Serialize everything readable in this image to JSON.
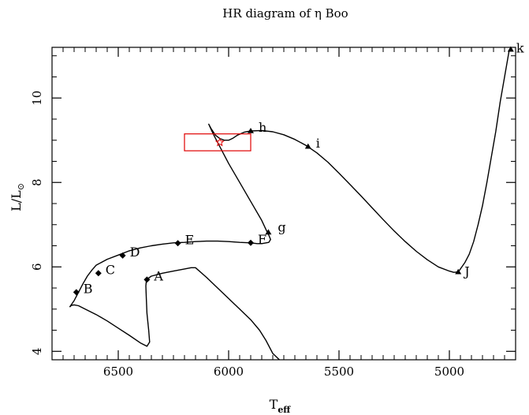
{
  "chart_data": {
    "type": "line",
    "title": "HR diagram of η Boo",
    "xlabel": "T",
    "xlabel_sub": "eff",
    "ylabel": "L/L",
    "ylabel_symbol": "⊙",
    "xlim": [
      6800,
      4700
    ],
    "ylim": [
      3.8,
      11.2
    ],
    "x_reversed": true,
    "xticks": [
      6500,
      6000,
      5500,
      5000
    ],
    "xtick_labels": [
      "6500",
      "6000",
      "5500",
      "5000"
    ],
    "yticks": [
      4,
      6,
      8,
      10
    ],
    "ytick_labels": [
      "4",
      "6",
      "8",
      "10"
    ],
    "grid": false,
    "tracks": [
      {
        "points": [
          [
            6720,
            5.05
          ],
          [
            6712,
            5.09
          ],
          [
            6700,
            5.1
          ],
          [
            6680,
            5.08
          ],
          [
            6650,
            5.0
          ],
          [
            6600,
            4.87
          ],
          [
            6550,
            4.72
          ],
          [
            6500,
            4.55
          ],
          [
            6450,
            4.38
          ],
          [
            6400,
            4.2
          ],
          [
            6370,
            4.12
          ],
          [
            6358,
            4.22
          ],
          [
            6362,
            4.5
          ],
          [
            6370,
            4.9
          ],
          [
            6373,
            5.25
          ],
          [
            6375,
            5.55
          ],
          [
            6372,
            5.7
          ],
          [
            6350,
            5.78
          ],
          [
            6300,
            5.85
          ],
          [
            6250,
            5.9
          ],
          [
            6200,
            5.95
          ],
          [
            6170,
            5.98
          ],
          [
            6150,
            5.98
          ],
          [
            6100,
            5.75
          ],
          [
            6050,
            5.5
          ],
          [
            6000,
            5.25
          ],
          [
            5950,
            5.0
          ],
          [
            5900,
            4.75
          ],
          [
            5860,
            4.5
          ],
          [
            5830,
            4.25
          ],
          [
            5800,
            3.95
          ],
          [
            5770,
            3.7
          ]
        ]
      },
      {
        "points": [
          [
            6720,
            5.05
          ],
          [
            6700,
            5.2
          ],
          [
            6680,
            5.4
          ],
          [
            6660,
            5.6
          ],
          [
            6640,
            5.78
          ],
          [
            6620,
            5.92
          ],
          [
            6600,
            6.04
          ],
          [
            6550,
            6.18
          ],
          [
            6500,
            6.28
          ],
          [
            6450,
            6.38
          ],
          [
            6400,
            6.45
          ],
          [
            6350,
            6.5
          ],
          [
            6300,
            6.54
          ],
          [
            6250,
            6.57
          ],
          [
            6200,
            6.58
          ],
          [
            6150,
            6.6
          ],
          [
            6100,
            6.61
          ],
          [
            6050,
            6.61
          ],
          [
            6000,
            6.6
          ],
          [
            5950,
            6.58
          ],
          [
            5900,
            6.57
          ],
          [
            5870,
            6.55
          ],
          [
            5850,
            6.55
          ],
          [
            5818,
            6.58
          ],
          [
            5810,
            6.65
          ],
          [
            5818,
            6.75
          ],
          [
            5825,
            6.82
          ],
          [
            5850,
            7.1
          ],
          [
            5900,
            7.55
          ],
          [
            5950,
            8.0
          ],
          [
            6000,
            8.45
          ],
          [
            6040,
            8.85
          ],
          [
            6070,
            9.15
          ],
          [
            6090,
            9.38
          ],
          [
            6080,
            9.28
          ],
          [
            6060,
            9.12
          ],
          [
            6040,
            9.04
          ],
          [
            6020,
            9.0
          ],
          [
            6000,
            9.0
          ],
          [
            5980,
            9.05
          ],
          [
            5960,
            9.12
          ],
          [
            5930,
            9.19
          ],
          [
            5900,
            9.22
          ],
          [
            5850,
            9.23
          ],
          [
            5800,
            9.2
          ],
          [
            5750,
            9.13
          ],
          [
            5700,
            9.02
          ],
          [
            5650,
            8.88
          ],
          [
            5600,
            8.7
          ],
          [
            5550,
            8.48
          ],
          [
            5500,
            8.22
          ],
          [
            5450,
            7.95
          ],
          [
            5400,
            7.68
          ],
          [
            5350,
            7.4
          ],
          [
            5300,
            7.12
          ],
          [
            5250,
            6.85
          ],
          [
            5200,
            6.6
          ],
          [
            5150,
            6.37
          ],
          [
            5100,
            6.17
          ],
          [
            5050,
            6.0
          ],
          [
            5000,
            5.9
          ],
          [
            4980,
            5.87
          ],
          [
            4960,
            5.88
          ],
          [
            4950,
            5.95
          ],
          [
            4930,
            6.1
          ],
          [
            4910,
            6.3
          ],
          [
            4890,
            6.6
          ],
          [
            4870,
            7.0
          ],
          [
            4850,
            7.45
          ],
          [
            4830,
            8.0
          ],
          [
            4810,
            8.6
          ],
          [
            4790,
            9.2
          ],
          [
            4770,
            9.9
          ],
          [
            4750,
            10.5
          ],
          [
            4730,
            11.1
          ],
          [
            4722,
            11.15
          ]
        ]
      }
    ],
    "points_diamond": [
      {
        "label": "A",
        "x": 6370,
        "y": 5.7
      },
      {
        "label": "B",
        "x": 6690,
        "y": 5.4
      },
      {
        "label": "C",
        "x": 6590,
        "y": 5.85
      },
      {
        "label": "D",
        "x": 6480,
        "y": 6.27
      },
      {
        "label": "E",
        "x": 6230,
        "y": 6.56
      },
      {
        "label": "F",
        "x": 5900,
        "y": 6.57
      }
    ],
    "points_triangle": [
      {
        "label": "g",
        "x": 5820,
        "y": 6.82
      },
      {
        "label": "h",
        "x": 5900,
        "y": 9.22
      },
      {
        "label": "i",
        "x": 5640,
        "y": 8.85
      },
      {
        "label": "J",
        "x": 4960,
        "y": 5.88
      },
      {
        "label": "k",
        "x": 4722,
        "y": 11.15
      }
    ],
    "observed_star": {
      "x": 6040,
      "y": 8.95
    },
    "error_box": {
      "x_range": [
        6200,
        5900
      ],
      "y_range": [
        8.75,
        9.15
      ]
    },
    "colors": {
      "track": "#000000",
      "observation": "#e00000"
    }
  }
}
